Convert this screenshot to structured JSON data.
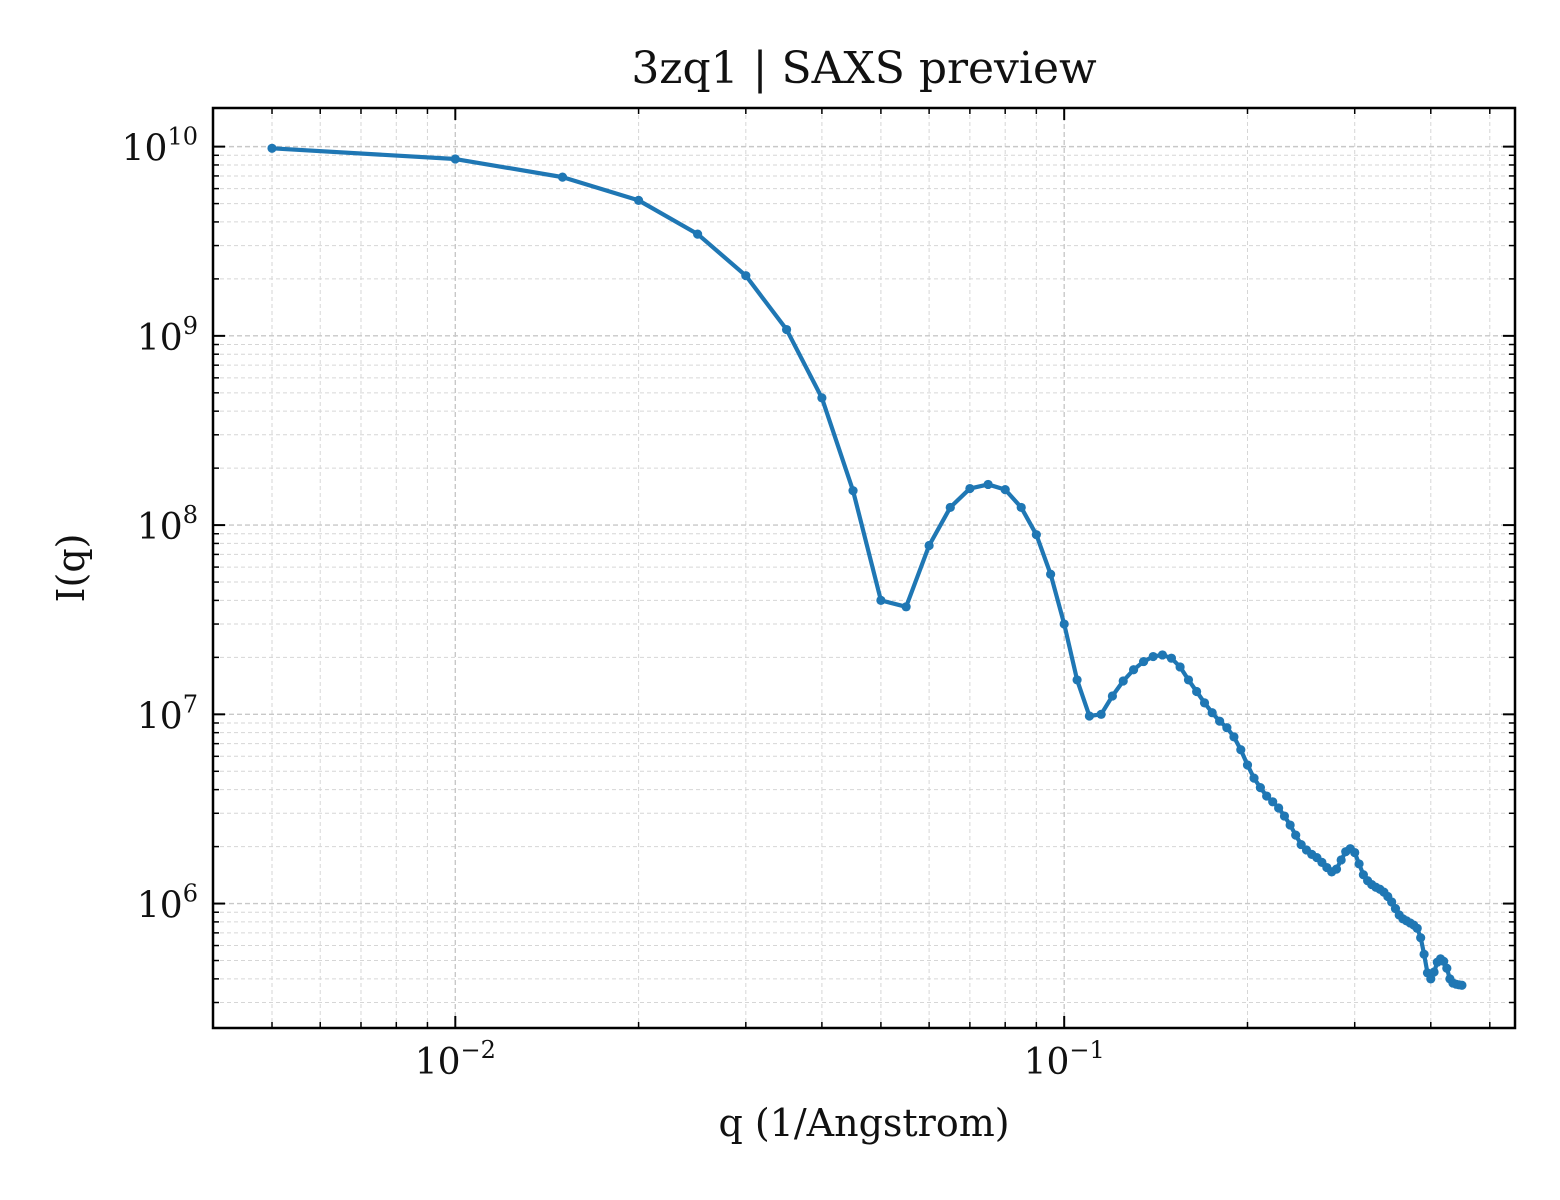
{
  "chart_data": {
    "type": "line",
    "title": "3zq1 | SAXS preview",
    "xlabel": "q (1/Angstrom)",
    "ylabel": "I(q)",
    "xscale": "log",
    "yscale": "log",
    "xlim": [
      0.004,
      0.55
    ],
    "ylim": [
      220000,
      16000000000
    ],
    "grid": true,
    "legend": "none",
    "line_color": "#1f77b4",
    "marker": "dot",
    "x_ticks": [
      {
        "base": "10",
        "exp": "−2",
        "value": 0.01
      },
      {
        "base": "10",
        "exp": "−1",
        "value": 0.1
      }
    ],
    "y_ticks": [
      {
        "base": "10",
        "exp": "6",
        "value": 1000000
      },
      {
        "base": "10",
        "exp": "7",
        "value": 10000000
      },
      {
        "base": "10",
        "exp": "8",
        "value": 100000000
      },
      {
        "base": "10",
        "exp": "9",
        "value": 1000000000
      },
      {
        "base": "10",
        "exp": "10",
        "value": 10000000000
      }
    ],
    "series": [
      {
        "points": [
          [
            0.005,
            9800000000.0
          ],
          [
            0.01,
            8600000000.0
          ],
          [
            0.015,
            6900000000.0
          ],
          [
            0.02,
            5200000000.0
          ],
          [
            0.025,
            3450000000.0
          ],
          [
            0.03,
            2080000000.0
          ],
          [
            0.035,
            1080000000.0
          ],
          [
            0.04,
            470000000.0
          ],
          [
            0.045,
            152000000.0
          ],
          [
            0.05,
            40000000.0
          ],
          [
            0.055,
            37000000.0
          ],
          [
            0.06,
            78000000.0
          ],
          [
            0.065,
            124000000.0
          ],
          [
            0.07,
            156000000.0
          ],
          [
            0.075,
            164000000.0
          ],
          [
            0.08,
            154000000.0
          ],
          [
            0.085,
            124000000.0
          ],
          [
            0.09,
            89000000.0
          ],
          [
            0.095,
            55000000.0
          ],
          [
            0.1,
            30000000.0
          ],
          [
            0.105,
            15200000.0
          ],
          [
            0.11,
            9800000.0
          ],
          [
            0.115,
            10000000.0
          ],
          [
            0.12,
            12500000.0
          ],
          [
            0.125,
            15000000.0
          ],
          [
            0.13,
            17200000.0
          ],
          [
            0.135,
            19000000.0
          ],
          [
            0.14,
            20200000.0
          ],
          [
            0.145,
            20600000.0
          ],
          [
            0.15,
            19800000.0
          ],
          [
            0.155,
            17800000.0
          ],
          [
            0.16,
            15200000.0
          ],
          [
            0.165,
            13200000.0
          ],
          [
            0.17,
            11500000.0
          ],
          [
            0.175,
            10200000.0
          ],
          [
            0.18,
            9200000.0
          ],
          [
            0.185,
            8500000.0
          ],
          [
            0.19,
            7600000.0
          ],
          [
            0.195,
            6500000.0
          ],
          [
            0.2,
            5400000.0
          ],
          [
            0.205,
            4600000.0
          ],
          [
            0.21,
            4100000.0
          ],
          [
            0.215,
            3700000.0
          ],
          [
            0.22,
            3450000.0
          ],
          [
            0.225,
            3200000.0
          ],
          [
            0.23,
            2900000.0
          ],
          [
            0.235,
            2600000.0
          ],
          [
            0.24,
            2300000.0
          ],
          [
            0.245,
            2050000.0
          ],
          [
            0.25,
            1920000.0
          ],
          [
            0.255,
            1820000.0
          ],
          [
            0.26,
            1750000.0
          ],
          [
            0.265,
            1650000.0
          ],
          [
            0.27,
            1550000.0
          ],
          [
            0.275,
            1470000.0
          ],
          [
            0.28,
            1520000.0
          ],
          [
            0.285,
            1700000.0
          ],
          [
            0.29,
            1880000.0
          ],
          [
            0.295,
            1950000.0
          ],
          [
            0.3,
            1860000.0
          ],
          [
            0.305,
            1620000.0
          ],
          [
            0.31,
            1420000.0
          ],
          [
            0.315,
            1320000.0
          ],
          [
            0.32,
            1260000.0
          ],
          [
            0.325,
            1220000.0
          ],
          [
            0.33,
            1190000.0
          ],
          [
            0.335,
            1150000.0
          ],
          [
            0.34,
            1090000.0
          ],
          [
            0.345,
            1020000.0
          ],
          [
            0.35,
            940000.0
          ],
          [
            0.355,
            870000.0
          ],
          [
            0.36,
            830000.0
          ],
          [
            0.365,
            810000.0
          ],
          [
            0.37,
            790000.0
          ],
          [
            0.375,
            770000.0
          ],
          [
            0.38,
            740000.0
          ],
          [
            0.385,
            660000.0
          ],
          [
            0.39,
            540000.0
          ],
          [
            0.395,
            430000.0
          ],
          [
            0.4,
            400000.0
          ],
          [
            0.405,
            435000.0
          ],
          [
            0.41,
            490000.0
          ],
          [
            0.415,
            510000.0
          ],
          [
            0.42,
            495000.0
          ],
          [
            0.425,
            455000.0
          ],
          [
            0.43,
            400000.0
          ],
          [
            0.435,
            380000.0
          ],
          [
            0.44,
            375000.0
          ],
          [
            0.445,
            372000.0
          ],
          [
            0.45,
            370000.0
          ]
        ]
      }
    ]
  }
}
